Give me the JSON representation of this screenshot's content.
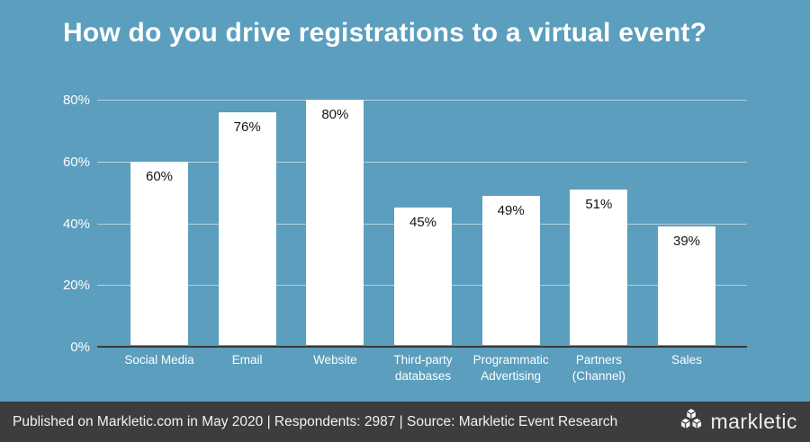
{
  "title": "How do you drive registrations to a virtual event?",
  "colors": {
    "background": "#5B9EBD",
    "bar_fill": "#FFFFFF",
    "gridline": "rgba(255,255,255,0.55)",
    "axis_baseline": "#3A3A3A",
    "footer_background": "#3D3D3D",
    "title_text": "#FFFFFF",
    "bar_value_text": "#141414",
    "axis_tick_text": "#FFFFFF",
    "footer_text": "#F2F2F2"
  },
  "chart_data": {
    "type": "bar",
    "title": "How do you drive registrations to a virtual event?",
    "categories": [
      "Social Media",
      "Email",
      "Website",
      "Third-party\ndatabases",
      "Programmatic\nAdvertising",
      "Partners\n(Channel)",
      "Sales"
    ],
    "values": [
      60,
      76,
      80,
      45,
      49,
      51,
      39
    ],
    "value_labels": [
      "60%",
      "76%",
      "80%",
      "45%",
      "49%",
      "51%",
      "39%"
    ],
    "xlabel": "",
    "ylabel": "",
    "y_ticks": [
      0,
      20,
      40,
      60,
      80
    ],
    "y_tick_labels": [
      "0%",
      "20%",
      "40%",
      "60%",
      "80%"
    ],
    "ylim": [
      0,
      80
    ],
    "grid": true,
    "legend": false,
    "bar_color": "#FFFFFF",
    "value_label_position": "inside-top"
  },
  "footer": {
    "text": "Published on Markletic.com in May 2020 | Respondents: 2987 | Source: Markletic Event Research",
    "logo_text": "markletic",
    "logo_icon": "cubes-logo-icon"
  }
}
